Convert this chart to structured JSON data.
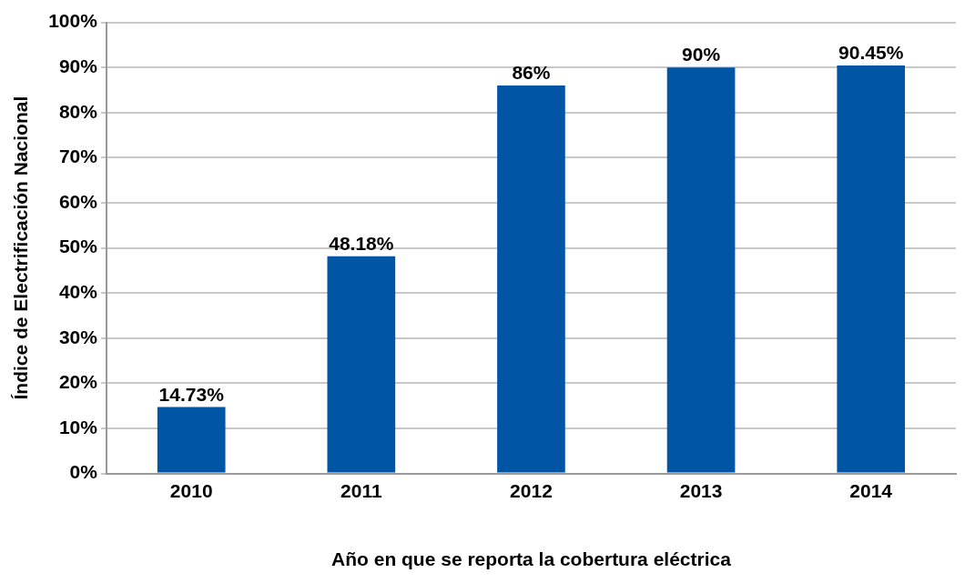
{
  "chart_data": {
    "type": "bar",
    "xlabel": "Año en que se reporta la cobertura eléctrica",
    "ylabel": "Índice de Electrificación Nacional",
    "categories": [
      "2010",
      "2011",
      "2012",
      "2013",
      "2014"
    ],
    "values": [
      14.73,
      48.18,
      86,
      90,
      90.45
    ],
    "value_labels": [
      "14.73%",
      "48.18%",
      "86%",
      "90%",
      "90.45%"
    ],
    "color": "#0055a5",
    "ylim": [
      0,
      100
    ],
    "yticks": [
      {
        "value": 0,
        "label": "0%"
      },
      {
        "value": 10,
        "label": "10%"
      },
      {
        "value": 20,
        "label": "20%"
      },
      {
        "value": 30,
        "label": "30%"
      },
      {
        "value": 40,
        "label": "40%"
      },
      {
        "value": 50,
        "label": "50%"
      },
      {
        "value": 60,
        "label": "60%"
      },
      {
        "value": 70,
        "label": "70%"
      },
      {
        "value": 80,
        "label": "80%"
      },
      {
        "value": 90,
        "label": "90%"
      },
      {
        "value": 100,
        "label": "100%"
      }
    ],
    "grid": "y",
    "legend": false
  }
}
